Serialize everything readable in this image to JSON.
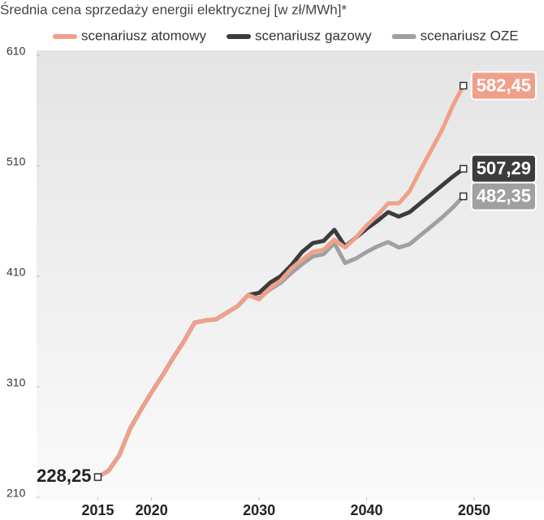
{
  "chart_data": {
    "type": "line",
    "title": "Średnia cena sprzedaży energii elektrycznej [w zł/MWh]*",
    "x": [
      2015,
      2016,
      2017,
      2018,
      2019,
      2020,
      2021,
      2022,
      2023,
      2024,
      2025,
      2026,
      2027,
      2028,
      2029,
      2030,
      2031,
      2032,
      2033,
      2034,
      2035,
      2036,
      2037,
      2038,
      2039,
      2040,
      2041,
      2042,
      2043,
      2044,
      2045,
      2046,
      2047,
      2048,
      2049
    ],
    "series": [
      {
        "name": "scenariusz atomowy",
        "color": "#f0a08a",
        "values": [
          228.25,
          234,
          248,
          272,
          289,
          305,
          320,
          336,
          351,
          368,
          370,
          371,
          377,
          383,
          393,
          389,
          399,
          406,
          417,
          425,
          432,
          434,
          443,
          436,
          445,
          456,
          465,
          476,
          476,
          487,
          506,
          524,
          542,
          564,
          582.45
        ],
        "value_labels": [
          "228,25",
          null,
          null,
          null,
          null,
          null,
          null,
          null,
          null,
          null,
          null,
          null,
          null,
          null,
          null,
          null,
          null,
          null,
          null,
          null,
          null,
          null,
          null,
          null,
          null,
          null,
          null,
          null,
          null,
          null,
          null,
          null,
          null,
          null,
          "582,45"
        ]
      },
      {
        "name": "scenariusz gazowy",
        "color": "#3c3c3c",
        "values": [
          228.25,
          234,
          248,
          272,
          289,
          305,
          320,
          336,
          351,
          368,
          370,
          371,
          377,
          383,
          393,
          395,
          404,
          410,
          420,
          432,
          440,
          442,
          452,
          437,
          445,
          453,
          460,
          468,
          464,
          468,
          476,
          484,
          492,
          500,
          507.29
        ],
        "value_labels": [
          null,
          null,
          null,
          null,
          null,
          null,
          null,
          null,
          null,
          null,
          null,
          null,
          null,
          null,
          null,
          null,
          null,
          null,
          null,
          null,
          null,
          null,
          null,
          null,
          null,
          null,
          null,
          null,
          null,
          null,
          null,
          null,
          null,
          null,
          "507,29"
        ]
      },
      {
        "name": "scenariusz OZE",
        "color": "#a0a0a0",
        "values": [
          228.25,
          234,
          248,
          272,
          289,
          305,
          320,
          336,
          351,
          368,
          370,
          371,
          377,
          383,
          393,
          390,
          398,
          404,
          413,
          421,
          428,
          430,
          440,
          422,
          426,
          432,
          437,
          441,
          436,
          439,
          447,
          455,
          463,
          472,
          482.35
        ],
        "value_labels": [
          null,
          null,
          null,
          null,
          null,
          null,
          null,
          null,
          null,
          null,
          null,
          null,
          null,
          null,
          null,
          null,
          null,
          null,
          null,
          null,
          null,
          null,
          null,
          null,
          null,
          null,
          null,
          null,
          null,
          null,
          null,
          null,
          null,
          null,
          "482,35"
        ]
      }
    ],
    "xlim": [
      2009.3,
      2056.5
    ],
    "xticks": [
      2015,
      2020,
      2030,
      2040,
      2050
    ],
    "ylim": [
      210,
      610
    ],
    "yticks": [
      210,
      310,
      410,
      510,
      610
    ]
  }
}
